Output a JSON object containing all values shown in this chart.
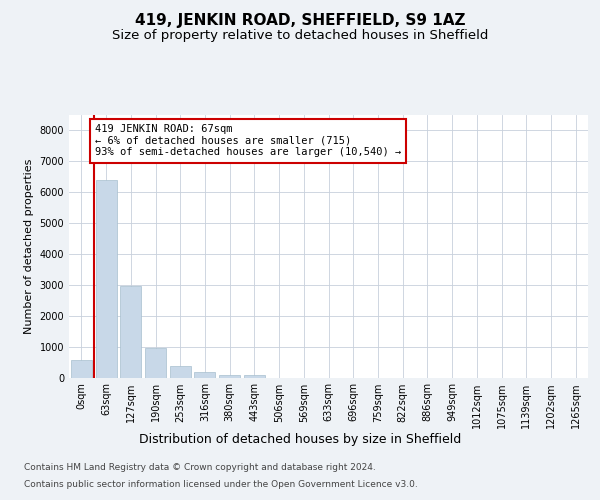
{
  "title": "419, JENKIN ROAD, SHEFFIELD, S9 1AZ",
  "subtitle": "Size of property relative to detached houses in Sheffield",
  "xlabel": "Distribution of detached houses by size in Sheffield",
  "ylabel": "Number of detached properties",
  "footer_line1": "Contains HM Land Registry data © Crown copyright and database right 2024.",
  "footer_line2": "Contains public sector information licensed under the Open Government Licence v3.0.",
  "bar_labels": [
    "0sqm",
    "63sqm",
    "127sqm",
    "190sqm",
    "253sqm",
    "316sqm",
    "380sqm",
    "443sqm",
    "506sqm",
    "569sqm",
    "633sqm",
    "696sqm",
    "759sqm",
    "822sqm",
    "886sqm",
    "949sqm",
    "1012sqm",
    "1075sqm",
    "1139sqm",
    "1202sqm",
    "1265sqm"
  ],
  "bar_values": [
    580,
    6400,
    2950,
    950,
    370,
    165,
    95,
    70,
    0,
    0,
    0,
    0,
    0,
    0,
    0,
    0,
    0,
    0,
    0,
    0,
    0
  ],
  "bar_color": "#c8d8e8",
  "bar_edgecolor": "#a8bfcf",
  "marker_color": "#cc0000",
  "annotation_text": "419 JENKIN ROAD: 67sqm\n← 6% of detached houses are smaller (715)\n93% of semi-detached houses are larger (10,540) →",
  "annotation_box_color": "#ffffff",
  "annotation_box_edgecolor": "#cc0000",
  "ylim": [
    0,
    8500
  ],
  "yticks": [
    0,
    1000,
    2000,
    3000,
    4000,
    5000,
    6000,
    7000,
    8000
  ],
  "background_color": "#eef2f6",
  "plot_background_color": "#ffffff",
  "grid_color": "#c8d0dc",
  "title_fontsize": 11,
  "subtitle_fontsize": 9.5,
  "xlabel_fontsize": 9,
  "ylabel_fontsize": 8,
  "tick_fontsize": 7,
  "footer_fontsize": 6.5,
  "annotation_fontsize": 7.5
}
